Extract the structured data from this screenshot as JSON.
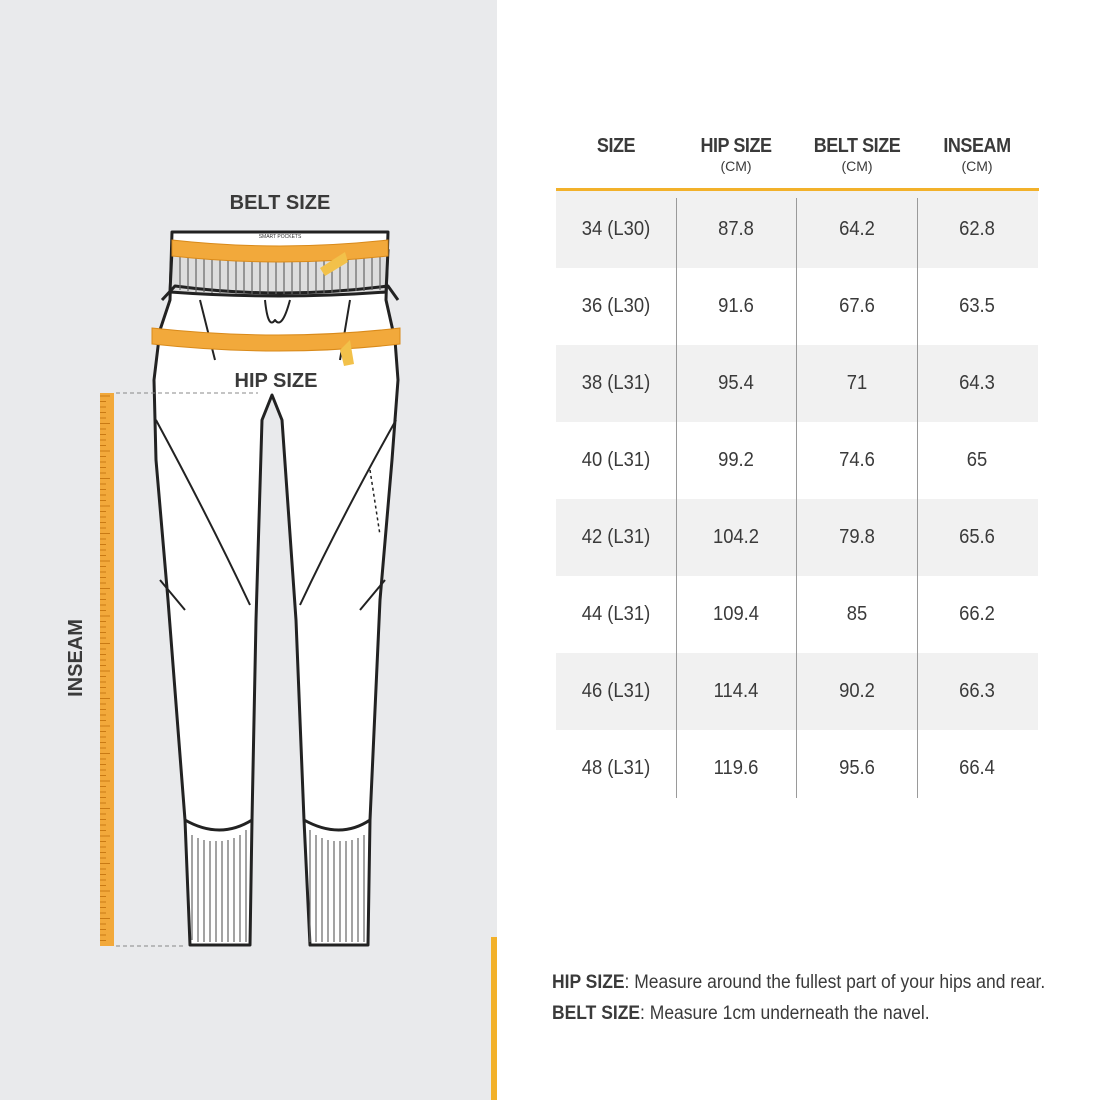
{
  "illustration": {
    "belt_label": "BELT SIZE",
    "hip_label": "HIP SIZE",
    "inseam_label": "INSEAM",
    "tag": "SMART POCKETS"
  },
  "table": {
    "headers": [
      {
        "title": "SIZE"
      },
      {
        "title": "HIP SIZE",
        "unit": "(CM)"
      },
      {
        "title": "BELT SIZE",
        "unit": "(CM)"
      },
      {
        "title": "INSEAM",
        "unit": "(CM)"
      }
    ],
    "rows": [
      [
        "34 (L30)",
        87.8,
        64.2,
        62.8
      ],
      [
        "36 (L30)",
        91.6,
        67.6,
        63.5
      ],
      [
        "38 (L31)",
        95.4,
        71,
        64.3
      ],
      [
        "40 (L31)",
        99.2,
        74.6,
        65
      ],
      [
        "42 (L31)",
        104.2,
        79.8,
        65.6
      ],
      [
        "44 (L31)",
        109.4,
        85,
        66.2
      ],
      [
        "46 (L31)",
        114.4,
        90.2,
        66.3
      ],
      [
        "48 (L31)",
        119.6,
        95.6,
        66.4
      ]
    ]
  },
  "notes": [
    {
      "term": "HIP SIZE",
      "text": ": Measure around the fullest part of your hips and rear."
    },
    {
      "term": "BELT SIZE",
      "text": ": Measure 1cm underneath the navel."
    }
  ]
}
